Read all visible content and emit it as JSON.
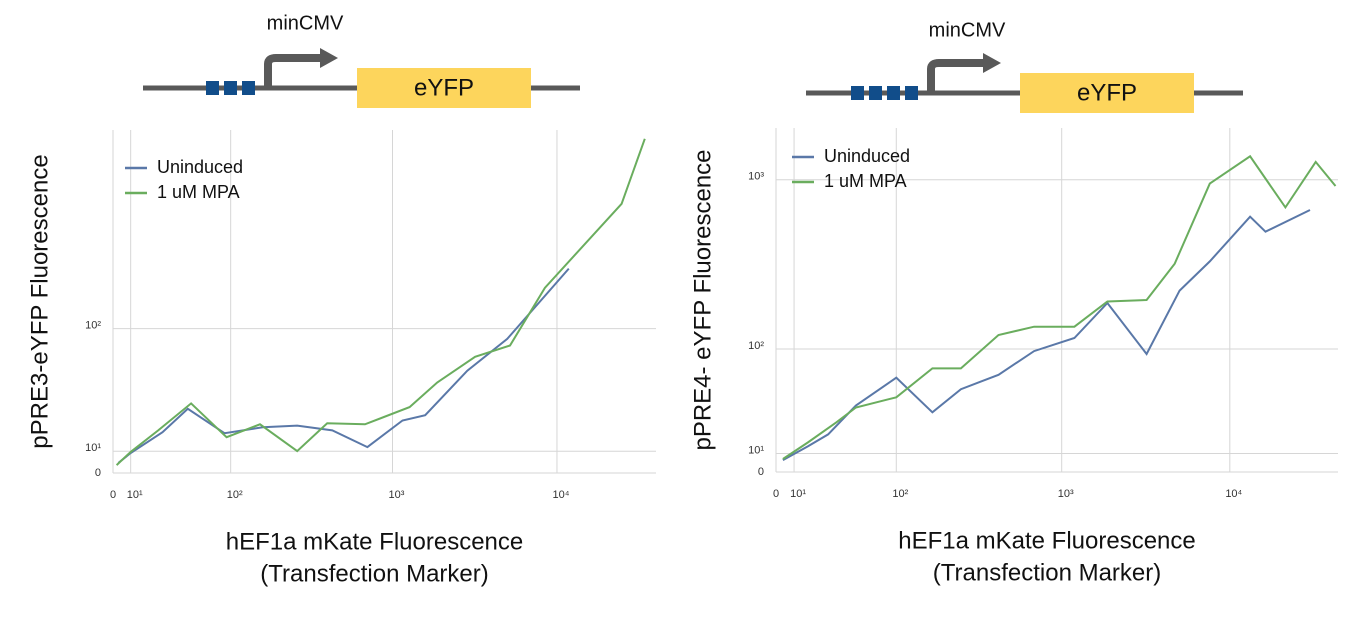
{
  "chart_data": [
    {
      "type": "line",
      "construct": {
        "promoter": "minCMV",
        "gene": "eYFP"
      },
      "xlabel": [
        "hEF1a mKate Fluorescence",
        "(Transfection Marker)"
      ],
      "ylabel": "pPRE3-eYFP Fluorescence",
      "xscale": "symlog",
      "yscale": "symlog",
      "grid": true,
      "legend": "upper left",
      "xlim": [
        0,
        40000
      ],
      "ylim": [
        0,
        1000
      ],
      "xticks": [
        0,
        {
          "value": 10,
          "label": "10¹"
        },
        {
          "value": 100,
          "label": "10²"
        },
        {
          "value": 1000,
          "label": "10³"
        },
        {
          "value": 10000,
          "label": "10⁴"
        }
      ],
      "yticks": [
        0,
        {
          "value": 10,
          "label": "10¹"
        },
        {
          "value": 100,
          "label": "10²"
        }
      ],
      "series": [
        {
          "name": "Uninduced",
          "color": "#5a78a8",
          "x": [
            3,
            10,
            30,
            50,
            91,
            160,
            262,
            430,
            703,
            1150,
            1580,
            2850,
            4980,
            11800
          ],
          "values": [
            4.6,
            9.2,
            19.3,
            32,
            18.8,
            21.8,
            22.7,
            20.2,
            12,
            25.4,
            28.3,
            58,
            88,
            204
          ]
        },
        {
          "name": "1 uM MPA",
          "color": "#6aad5e",
          "x": [
            2,
            10,
            27,
            53,
            94,
            154,
            262,
            400,
            680,
            1270,
            1870,
            3180,
            5180,
            8450,
            24700,
            34200
          ],
          "values": [
            3.6,
            9.7,
            20.2,
            35.2,
            16.8,
            23.4,
            10.1,
            23.9,
            23.4,
            33,
            49,
            70,
            81,
            163,
            430,
            904
          ]
        }
      ]
    },
    {
      "type": "line",
      "construct": {
        "promoter": "minCMV",
        "gene": "eYFP"
      },
      "xlabel": [
        "hEF1a mKate Fluorescence",
        "(Transfection Marker)"
      ],
      "ylabel": "pPRE4- eYFP Fluorescence",
      "xscale": "symlog",
      "yscale": "symlog",
      "grid": true,
      "legend": "upper left",
      "xlim": [
        0,
        44000
      ],
      "ylim": [
        0,
        2000
      ],
      "xticks": [
        0,
        {
          "value": 10,
          "label": "10¹"
        },
        {
          "value": 100,
          "label": "10²"
        },
        {
          "value": 1000,
          "label": "10³"
        },
        {
          "value": 10000,
          "label": "10⁴"
        }
      ],
      "yticks": [
        0,
        {
          "value": 10,
          "label": "10¹"
        },
        {
          "value": 100,
          "label": "10²"
        },
        {
          "value": 1000,
          "label": "10³"
        }
      ],
      "series": [
        {
          "name": "Uninduced",
          "color": "#5a78a8",
          "x": [
            3.8,
            18,
            31,
            53,
            100,
            168,
            250,
            420,
            685,
            1190,
            1870,
            3200,
            5030,
            7600,
            13200,
            16300,
            30000
          ],
          "values": [
            6.4,
            14,
            21,
            40.5,
            65,
            35.5,
            54,
            68,
            97,
            117,
            190,
            93,
            225,
            334,
            609,
            498,
            667
          ]
        },
        {
          "name": "1 uM MPA",
          "color": "#6aad5e",
          "x": [
            3.8,
            18,
            37,
            53,
            100,
            168,
            250,
            420,
            685,
            1190,
            1870,
            3200,
            4700,
            7600,
            13200,
            21400,
            32400,
            42500
          ],
          "values": [
            7,
            16.2,
            28.6,
            39,
            47,
            75,
            75,
            122,
            137,
            137,
            194,
            198,
            324,
            950,
            1370,
            690,
            1270,
            920
          ]
        }
      ]
    }
  ]
}
